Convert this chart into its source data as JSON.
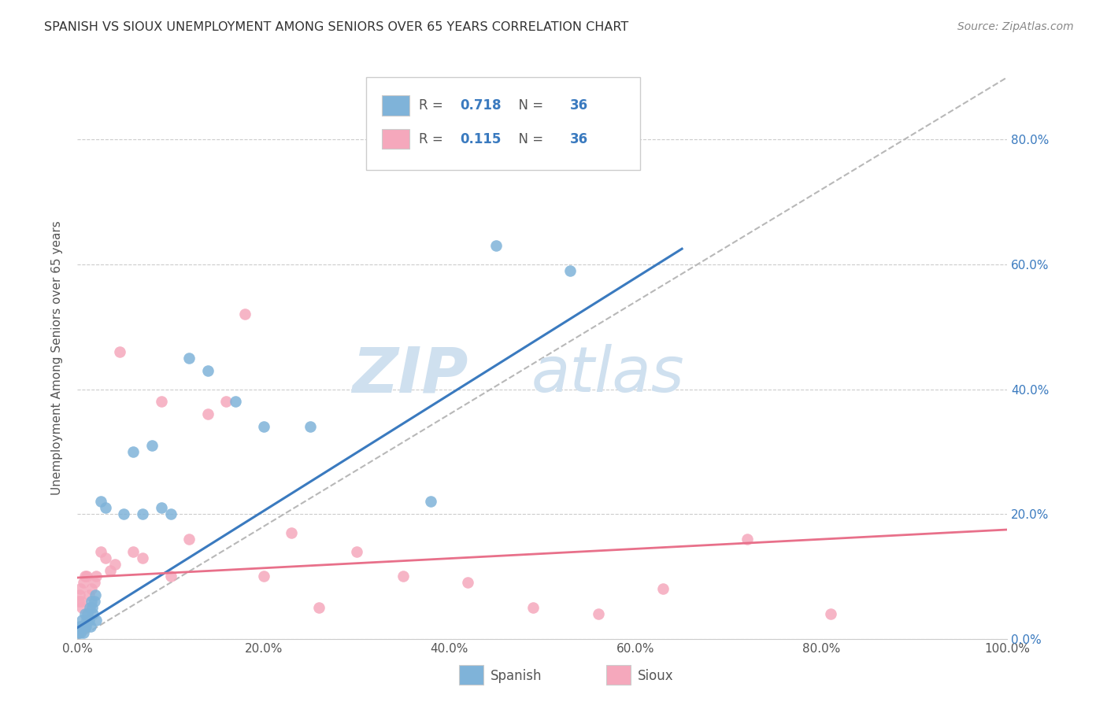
{
  "title": "SPANISH VS SIOUX UNEMPLOYMENT AMONG SENIORS OVER 65 YEARS CORRELATION CHART",
  "source": "Source: ZipAtlas.com",
  "ylabel": "Unemployment Among Seniors over 65 years",
  "xlim": [
    0,
    1.0
  ],
  "ylim": [
    0,
    0.9
  ],
  "xticks": [
    0.0,
    0.2,
    0.4,
    0.6,
    0.8,
    1.0
  ],
  "yticks": [
    0.0,
    0.2,
    0.4,
    0.6,
    0.8
  ],
  "xticklabels": [
    "0.0%",
    "20.0%",
    "40.0%",
    "60.0%",
    "80.0%",
    "100.0%"
  ],
  "right_yticklabels": [
    "0.0%",
    "20.0%",
    "40.0%",
    "60.0%",
    "80.0%"
  ],
  "spanish_R": "0.718",
  "spanish_N": "36",
  "sioux_R": "0.115",
  "sioux_N": "36",
  "spanish_color": "#7fb3d9",
  "sioux_color": "#f5a8bc",
  "spanish_line_color": "#3a7abf",
  "sioux_line_color": "#e8708a",
  "diagonal_color": "#b8b8b8",
  "background_color": "#ffffff",
  "watermark_zip": "ZIP",
  "watermark_atlas": "atlas",
  "watermark_color": "#cfe0ef",
  "legend_text_color": "#3a7abf",
  "legend_label_color": "#555555",
  "title_color": "#333333",
  "source_color": "#888888",
  "tick_color": "#3a7abf",
  "ylabel_color": "#555555",
  "grid_color": "#cccccc",
  "spanish_x": [
    0.001,
    0.002,
    0.003,
    0.004,
    0.005,
    0.006,
    0.007,
    0.008,
    0.009,
    0.01,
    0.011,
    0.012,
    0.013,
    0.014,
    0.015,
    0.016,
    0.017,
    0.018,
    0.019,
    0.02,
    0.025,
    0.03,
    0.05,
    0.06,
    0.07,
    0.08,
    0.09,
    0.1,
    0.12,
    0.14,
    0.17,
    0.2,
    0.25,
    0.38,
    0.45,
    0.53
  ],
  "spanish_y": [
    0.01,
    0.02,
    0.01,
    0.02,
    0.03,
    0.01,
    0.02,
    0.04,
    0.02,
    0.03,
    0.04,
    0.03,
    0.05,
    0.02,
    0.06,
    0.05,
    0.04,
    0.06,
    0.07,
    0.03,
    0.22,
    0.21,
    0.2,
    0.3,
    0.2,
    0.31,
    0.21,
    0.2,
    0.45,
    0.43,
    0.38,
    0.34,
    0.34,
    0.22,
    0.63,
    0.59
  ],
  "sioux_x": [
    0.001,
    0.002,
    0.003,
    0.004,
    0.005,
    0.006,
    0.008,
    0.01,
    0.012,
    0.015,
    0.018,
    0.02,
    0.025,
    0.03,
    0.035,
    0.04,
    0.045,
    0.06,
    0.07,
    0.09,
    0.1,
    0.12,
    0.14,
    0.16,
    0.18,
    0.2,
    0.23,
    0.26,
    0.3,
    0.35,
    0.42,
    0.49,
    0.56,
    0.63,
    0.72,
    0.81
  ],
  "sioux_y": [
    0.06,
    0.07,
    0.08,
    0.06,
    0.05,
    0.09,
    0.1,
    0.1,
    0.07,
    0.08,
    0.09,
    0.1,
    0.14,
    0.13,
    0.11,
    0.12,
    0.46,
    0.14,
    0.13,
    0.38,
    0.1,
    0.16,
    0.36,
    0.38,
    0.52,
    0.1,
    0.17,
    0.05,
    0.14,
    0.1,
    0.09,
    0.05,
    0.04,
    0.08,
    0.16,
    0.04
  ]
}
